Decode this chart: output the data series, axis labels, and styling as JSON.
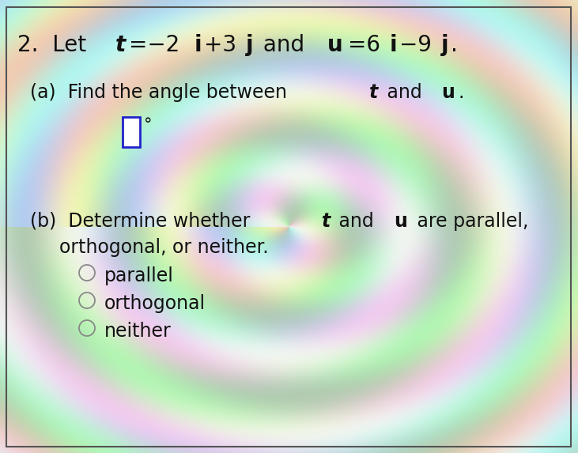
{
  "bg_color_base": "#d8e8d8",
  "border_color": "#555555",
  "text_color": "#111111",
  "box_color": "#3333cc",
  "font_size_title": 20,
  "font_size_body": 17,
  "radio_options": [
    "parallel",
    "orthogonal",
    "neither"
  ],
  "title_line": "2.  Let t=−2i+3j and u=6i−9j.",
  "part_a_line": "(a)  Find the angle between t and u.",
  "part_b_line1": "(b)  Determine whether t and u are parallel,",
  "part_b_line2": "      orthogonal, or neither."
}
